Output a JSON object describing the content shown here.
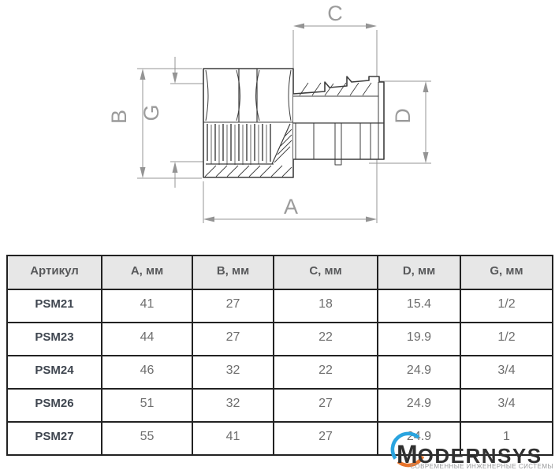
{
  "drawing": {
    "dimension_labels": {
      "a": "A",
      "b": "B",
      "c": "C",
      "d": "D",
      "g": "G"
    },
    "line_color": "#3d3d3d",
    "dim_color": "#949494"
  },
  "table": {
    "headers": [
      "Артикул",
      "A, мм",
      "B, мм",
      "C, мм",
      "D, мм",
      "G, мм"
    ],
    "rows": [
      [
        "PSM21",
        "41",
        "27",
        "18",
        "15.4",
        "1/2"
      ],
      [
        "PSM23",
        "44",
        "27",
        "22",
        "19.9",
        "1/2"
      ],
      [
        "PSM24",
        "46",
        "32",
        "22",
        "24.9",
        "3/4"
      ],
      [
        "PSM26",
        "51",
        "32",
        "27",
        "24.9",
        "3/4"
      ],
      [
        "PSM27",
        "55",
        "41",
        "27",
        "24.9",
        "1"
      ]
    ]
  },
  "logo": {
    "brand_first_letter": "M",
    "brand_rest": "ODERNSYS",
    "tagline": "СОВРЕМЕННЫЕ ИНЖЕНЕРНЫЕ СИСТЕМЫ",
    "arc_blue": "#2aa4df",
    "arc_orange": "#e8742c"
  }
}
